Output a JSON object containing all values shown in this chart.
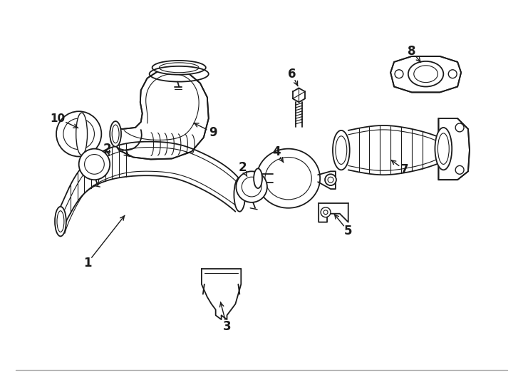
{
  "bg_color": "#ffffff",
  "line_color": "#1a1a1a",
  "fig_width": 7.34,
  "fig_height": 5.4,
  "dpi": 100,
  "border_color": "#cccccc",
  "label_fontsize": 11,
  "label_fontweight": "bold"
}
